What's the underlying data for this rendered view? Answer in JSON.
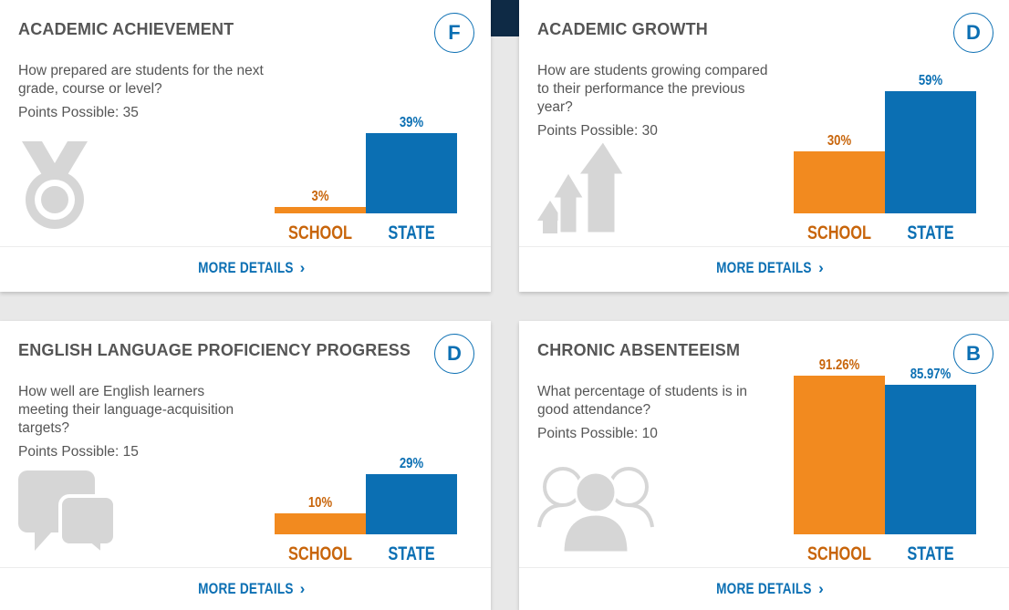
{
  "colors": {
    "school": "#f28a1f",
    "state": "#0b6fb3",
    "icon": "#d6d6d6"
  },
  "cards": [
    {
      "title": "ACADEMIC ACHIEVEMENT",
      "grade": "F",
      "question": "How prepared are students for the next grade, course or level?",
      "points": "Points Possible: 35",
      "icon": "medal-icon",
      "chart_data": {
        "type": "bar",
        "categories": [
          "SCHOOL",
          "STATE"
        ],
        "values": [
          3,
          39
        ],
        "value_labels": [
          "3%",
          "39%"
        ],
        "ylim": [
          0,
          100
        ]
      },
      "more": "MORE DETAILS"
    },
    {
      "title": "ACADEMIC GROWTH",
      "grade": "D",
      "question": "How are students growing compared to their performance the previous year?",
      "points": "Points Possible: 30",
      "icon": "growth-arrows-icon",
      "chart_data": {
        "type": "bar",
        "categories": [
          "SCHOOL",
          "STATE"
        ],
        "values": [
          30,
          59
        ],
        "value_labels": [
          "30%",
          "59%"
        ],
        "ylim": [
          0,
          100
        ]
      },
      "more": "MORE DETAILS"
    },
    {
      "title": "ENGLISH LANGUAGE PROFICIENCY PROGRESS",
      "grade": "D",
      "question": "How well are English learners meeting their language-acquisition targets?",
      "points": "Points Possible: 15",
      "icon": "chat-bubbles-icon",
      "chart_data": {
        "type": "bar",
        "categories": [
          "SCHOOL",
          "STATE"
        ],
        "values": [
          10,
          29
        ],
        "value_labels": [
          "10%",
          "29%"
        ],
        "ylim": [
          0,
          100
        ]
      },
      "more": "MORE DETAILS"
    },
    {
      "title": "CHRONIC ABSENTEEISM",
      "grade": "B",
      "question": "What percentage of students is in good attendance?",
      "points": "Points Possible: 10",
      "icon": "people-icon",
      "chart_data": {
        "type": "bar",
        "categories": [
          "SCHOOL",
          "STATE"
        ],
        "values": [
          91.26,
          85.97
        ],
        "value_labels": [
          "91.26%",
          "85.97%"
        ],
        "ylim": [
          0,
          100
        ]
      },
      "more": "MORE DETAILS"
    }
  ]
}
